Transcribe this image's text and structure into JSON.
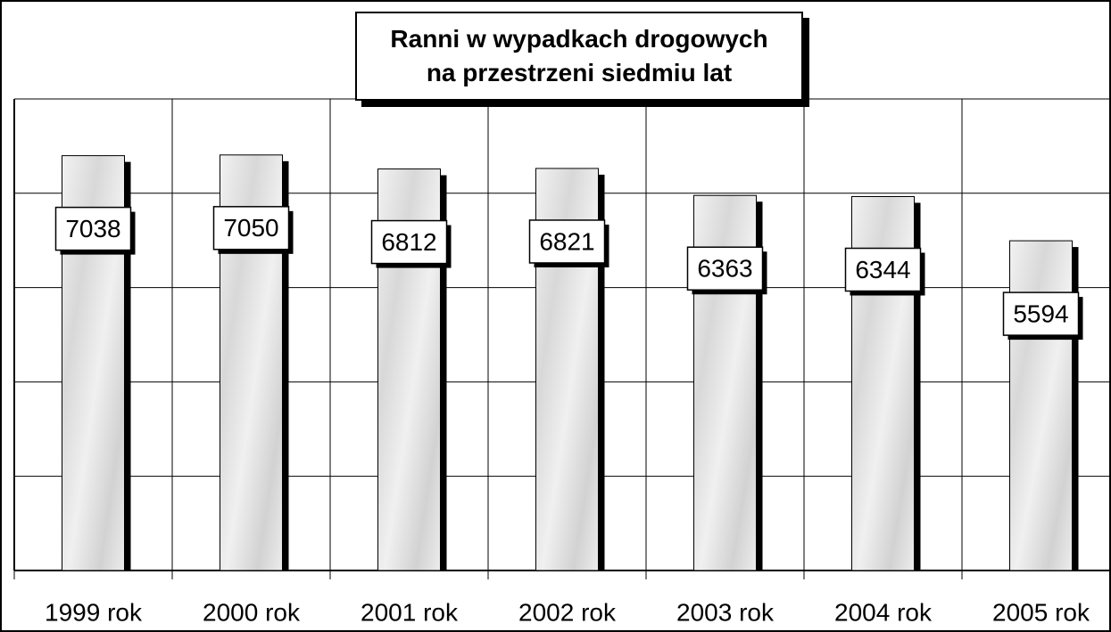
{
  "chart_data": {
    "type": "bar",
    "title": "Ranni w wypadkach drogowych na przestrzeni siedmiu lat",
    "categories": [
      "1999 rok",
      "2000 rok",
      "2001 rok",
      "2002 rok",
      "2003 rok",
      "2004 rok",
      "2005 rok"
    ],
    "values": [
      7038,
      7050,
      6812,
      6821,
      6363,
      6344,
      5594
    ],
    "color": "#e6e6e6",
    "ylim": [
      0,
      8000
    ],
    "yticks": [
      0,
      1600,
      3200,
      4800,
      6400,
      8000
    ],
    "grid": true
  }
}
